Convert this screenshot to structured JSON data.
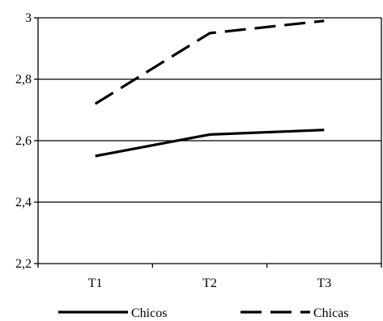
{
  "chart_data": {
    "type": "line",
    "categories": [
      "T1",
      "T2",
      "T3"
    ],
    "ylim": [
      2.2,
      3.0
    ],
    "yticks": [
      "2,2",
      "2,4",
      "2,6",
      "2,8",
      "3"
    ],
    "grid": "horizontal",
    "legend_position": "bottom",
    "series": [
      {
        "name": "Chicos",
        "values": [
          2.55,
          2.62,
          2.635
        ],
        "line_style": "solid",
        "color": "#000000"
      },
      {
        "name": "Chicas",
        "values": [
          2.72,
          2.95,
          2.99
        ],
        "line_style": "dashed",
        "color": "#000000"
      }
    ]
  }
}
